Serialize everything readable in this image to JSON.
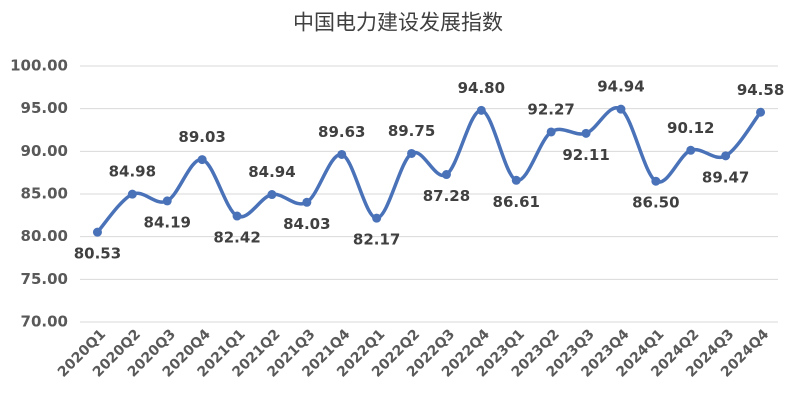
{
  "chart_data": {
    "type": "line",
    "title": "中国电力建设发展指数",
    "categories": [
      "2020Q1",
      "2020Q2",
      "2020Q3",
      "2020Q4",
      "2021Q1",
      "2021Q2",
      "2021Q3",
      "2021Q4",
      "2022Q1",
      "2022Q2",
      "2022Q3",
      "2022Q4",
      "2023Q1",
      "2023Q2",
      "2023Q3",
      "2023Q4",
      "2024Q1",
      "2024Q2",
      "2024Q3",
      "2024Q4"
    ],
    "values": [
      80.53,
      84.98,
      84.19,
      89.03,
      82.42,
      84.94,
      84.03,
      89.63,
      82.17,
      89.75,
      87.28,
      94.8,
      86.61,
      92.27,
      92.11,
      94.94,
      86.5,
      90.12,
      89.47,
      94.58
    ],
    "value_labels": [
      "80.53",
      "84.98",
      "84.19",
      "89.03",
      "82.42",
      "84.94",
      "84.03",
      "89.63",
      "82.17",
      "89.75",
      "87.28",
      "94.80",
      "86.61",
      "92.27",
      "92.11",
      "94.94",
      "86.50",
      "90.12",
      "89.47",
      "94.58"
    ],
    "color": "#4a72b8",
    "ylim": [
      70,
      100
    ],
    "yticks": [
      {
        "value": 70,
        "label": "70.00"
      },
      {
        "value": 75,
        "label": "75.00"
      },
      {
        "value": 80,
        "label": "80.00"
      },
      {
        "value": 85,
        "label": "85.00"
      },
      {
        "value": 90,
        "label": "90.00"
      },
      {
        "value": 95,
        "label": "95.00"
      },
      {
        "value": 100,
        "label": "100.00"
      }
    ],
    "grid": true,
    "smooth": true
  }
}
